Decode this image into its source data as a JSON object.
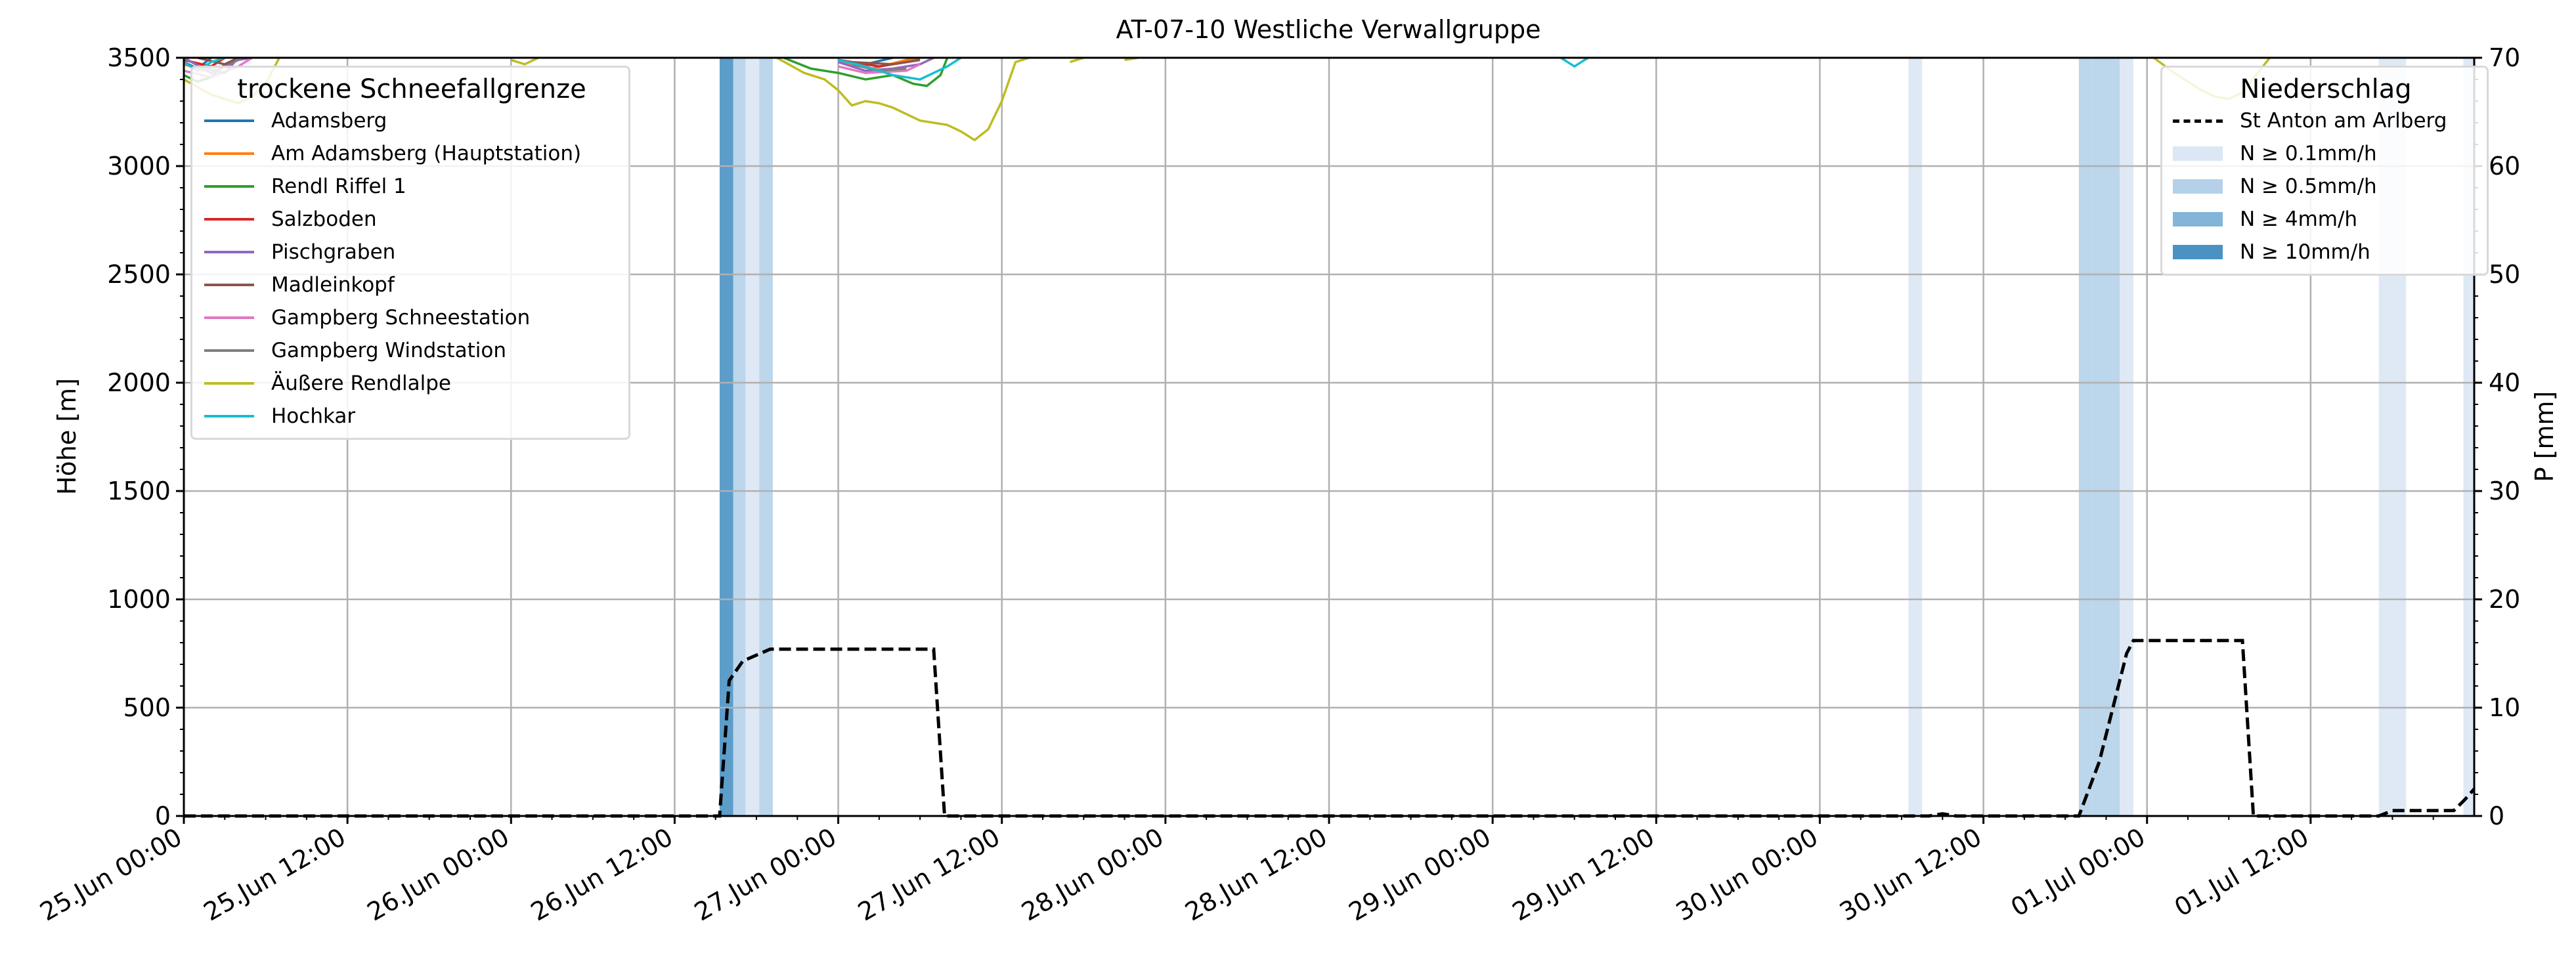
{
  "chart_data": {
    "type": "line",
    "title": "AT-07-10 Westliche Verwallgruppe",
    "ylabel": "Höhe [m]",
    "y2label": "P [mm]",
    "ylim": [
      0,
      3500
    ],
    "y2lim": [
      0,
      70
    ],
    "yticks": [
      0,
      500,
      1000,
      1500,
      2000,
      2500,
      3000,
      3500
    ],
    "y2ticks": [
      0,
      10,
      20,
      30,
      40,
      50,
      60,
      70
    ],
    "x_range_hours": [
      0,
      168
    ],
    "xticks": [
      "25.Jun 00:00",
      "25.Jun 12:00",
      "26.Jun 00:00",
      "26.Jun 12:00",
      "27.Jun 00:00",
      "27.Jun 12:00",
      "28.Jun 00:00",
      "28.Jun 12:00",
      "29.Jun 00:00",
      "29.Jun 12:00",
      "30.Jun 00:00",
      "30.Jun 12:00",
      "01.Jul 00:00",
      "01.Jul 12:00"
    ],
    "grid": true,
    "legend_left": {
      "title": "trockene Schneefallgrenze",
      "placement": "top-left",
      "entries": [
        {
          "name": "Adamsberg",
          "color": "#1f77b4"
        },
        {
          "name": "Am Adamsberg (Hauptstation)",
          "color": "#ff7f0e"
        },
        {
          "name": "Rendl Riffel 1",
          "color": "#2ca02c"
        },
        {
          "name": "Salzboden",
          "color": "#d62728"
        },
        {
          "name": "Pischgraben",
          "color": "#9467bd"
        },
        {
          "name": "Madleinkopf",
          "color": "#8c564b"
        },
        {
          "name": "Gampberg Schneestation",
          "color": "#e377c2"
        },
        {
          "name": "Gampberg Windstation",
          "color": "#7f7f7f"
        },
        {
          "name": "Äußere Rendlalpe",
          "color": "#bcbd22"
        },
        {
          "name": "Hochkar",
          "color": "#17becf"
        }
      ]
    },
    "legend_right": {
      "title": "Niederschlag",
      "placement": "top-right",
      "line_label": "St Anton am Arlberg",
      "intensity_labels": [
        "N ≥ 0.1mm/h",
        "N ≥ 0.5mm/h",
        "N ≥ 4mm/h",
        "N ≥ 10mm/h"
      ],
      "intensity_colors": [
        "#dbe7f4",
        "#b5d1e9",
        "#82b5d8",
        "#4a92c4"
      ]
    },
    "precip_cumulative": {
      "name": "St Anton am Arlberg",
      "points": [
        [
          0,
          0
        ],
        [
          39.3,
          0
        ],
        [
          40.0,
          12.5
        ],
        [
          41.0,
          14.3
        ],
        [
          43.0,
          15.4
        ],
        [
          55.0,
          15.4
        ],
        [
          55.8,
          0
        ],
        [
          121.0,
          0
        ],
        [
          128.0,
          0
        ],
        [
          129.0,
          0.2
        ],
        [
          130.0,
          0
        ],
        [
          139.0,
          0
        ],
        [
          140.5,
          5
        ],
        [
          141.5,
          10
        ],
        [
          142.5,
          15
        ],
        [
          143.0,
          16.2
        ],
        [
          151.0,
          16.2
        ],
        [
          151.8,
          0
        ],
        [
          161.0,
          0
        ],
        [
          162.0,
          0.5
        ],
        [
          166.5,
          0.5
        ],
        [
          167.3,
          1.5
        ],
        [
          168.0,
          2.5
        ]
      ]
    },
    "precip_bands": [
      {
        "start": 39.3,
        "end": 40.3,
        "level": 3
      },
      {
        "start": 40.3,
        "end": 41.2,
        "level": 1
      },
      {
        "start": 41.2,
        "end": 42.2,
        "level": 0
      },
      {
        "start": 42.2,
        "end": 43.2,
        "level": 1
      },
      {
        "start": 126.5,
        "end": 127.5,
        "level": 0
      },
      {
        "start": 139.0,
        "end": 140.0,
        "level": 1
      },
      {
        "start": 140.0,
        "end": 142.0,
        "level": 1
      },
      {
        "start": 142.0,
        "end": 143.0,
        "level": 0
      },
      {
        "start": 161.0,
        "end": 163.0,
        "level": 0
      },
      {
        "start": 167.2,
        "end": 168.0,
        "level": 0
      }
    ],
    "snowline_series": [
      {
        "name": "Adamsberg",
        "color": "#1f77b4",
        "segments": [
          [
            [
              0,
              3480
            ],
            [
              1,
              3450
            ],
            [
              2,
              3500
            ]
          ],
          [
            [
              48,
              3490
            ],
            [
              50,
              3470
            ],
            [
              52,
              3500
            ]
          ]
        ]
      },
      {
        "name": "Am Adamsberg (Hauptstation)",
        "color": "#ff7f0e",
        "segments": [
          [
            [
              0,
              3470
            ],
            [
              1.5,
              3440
            ],
            [
              3,
              3500
            ]
          ],
          [
            [
              48,
              3480
            ],
            [
              50.5,
              3450
            ],
            [
              53,
              3490
            ],
            [
              54,
              3500
            ]
          ]
        ]
      },
      {
        "name": "Rendl Riffel 1",
        "color": "#2ca02c",
        "segments": [
          [
            [
              0,
              3420
            ],
            [
              1,
              3390
            ],
            [
              2,
              3410
            ],
            [
              3,
              3470
            ],
            [
              4,
              3500
            ]
          ],
          [
            [
              44,
              3500
            ],
            [
              46,
              3450
            ],
            [
              48,
              3430
            ],
            [
              50,
              3400
            ],
            [
              52,
              3420
            ],
            [
              53.5,
              3380
            ],
            [
              54.5,
              3370
            ],
            [
              55.5,
              3420
            ],
            [
              56,
              3500
            ]
          ]
        ]
      },
      {
        "name": "Salzboden",
        "color": "#d62728",
        "segments": [
          [
            [
              0,
              3490
            ],
            [
              2,
              3460
            ],
            [
              3,
              3500
            ]
          ],
          [
            [
              48,
              3490
            ],
            [
              51,
              3460
            ],
            [
              54,
              3490
            ]
          ]
        ]
      },
      {
        "name": "Pischgraben",
        "color": "#9467bd",
        "segments": [
          [
            [
              0,
              3500
            ],
            [
              2,
              3430
            ],
            [
              4,
              3490
            ],
            [
              5,
              3500
            ]
          ],
          [
            [
              48,
              3480
            ],
            [
              50,
              3440
            ],
            [
              52,
              3450
            ],
            [
              54,
              3470
            ],
            [
              55,
              3500
            ]
          ]
        ]
      },
      {
        "name": "Madleinkopf",
        "color": "#8c564b",
        "segments": [
          [
            [
              1,
              3500
            ],
            [
              3,
              3470
            ],
            [
              4,
              3500
            ]
          ],
          [
            [
              49,
              3480
            ],
            [
              52,
              3470
            ],
            [
              54,
              3490
            ]
          ]
        ]
      },
      {
        "name": "Gampberg Schneestation",
        "color": "#e377c2",
        "segments": [
          [
            [
              0,
              3440
            ],
            [
              2,
              3410
            ],
            [
              4,
              3460
            ],
            [
              5,
              3500
            ]
          ],
          [
            [
              48,
              3460
            ],
            [
              50,
              3430
            ],
            [
              53,
              3440
            ],
            [
              54,
              3470
            ]
          ]
        ]
      },
      {
        "name": "Gampberg Windstation",
        "color": "#7f7f7f",
        "segments": [
          [
            [
              1,
              3460
            ],
            [
              3,
              3430
            ],
            [
              4,
              3500
            ]
          ],
          [
            [
              49,
              3470
            ],
            [
              51,
              3440
            ],
            [
              53,
              3450
            ]
          ]
        ]
      },
      {
        "name": "Äußere Rendlalpe",
        "color": "#bcbd22",
        "segments": [
          [
            [
              0,
              3400
            ],
            [
              2,
              3330
            ],
            [
              4,
              3290
            ],
            [
              5,
              3320
            ],
            [
              6,
              3380
            ],
            [
              7,
              3500
            ]
          ],
          [
            [
              24,
              3490
            ],
            [
              25,
              3470
            ],
            [
              26,
              3500
            ]
          ],
          [
            [
              43.5,
              3500
            ],
            [
              45.5,
              3430
            ],
            [
              47,
              3400
            ],
            [
              48,
              3350
            ],
            [
              49,
              3280
            ],
            [
              50,
              3300
            ],
            [
              51,
              3290
            ],
            [
              52,
              3270
            ],
            [
              53,
              3240
            ],
            [
              54,
              3210
            ],
            [
              55,
              3200
            ],
            [
              56,
              3190
            ],
            [
              57,
              3160
            ],
            [
              58,
              3120
            ],
            [
              59,
              3170
            ],
            [
              60,
              3300
            ],
            [
              61,
              3480
            ],
            [
              62,
              3500
            ]
          ],
          [
            [
              65,
              3480
            ],
            [
              66,
              3500
            ]
          ],
          [
            [
              69,
              3490
            ],
            [
              70,
              3500
            ]
          ],
          [
            [
              120,
              3500
            ]
          ],
          [
            [
              144.5,
              3500
            ],
            [
              146,
              3430
            ],
            [
              147,
              3390
            ],
            [
              148,
              3350
            ],
            [
              149,
              3320
            ],
            [
              150,
              3310
            ],
            [
              151,
              3340
            ],
            [
              152,
              3420
            ],
            [
              153,
              3500
            ]
          ]
        ]
      },
      {
        "name": "Hochkar",
        "color": "#17becf",
        "segments": [
          [
            [
              0,
              3480
            ],
            [
              1,
              3440
            ],
            [
              2,
              3480
            ],
            [
              3,
              3500
            ]
          ],
          [
            [
              48,
              3490
            ],
            [
              50,
              3460
            ],
            [
              52,
              3420
            ],
            [
              54,
              3400
            ],
            [
              55,
              3430
            ],
            [
              56,
              3460
            ],
            [
              57,
              3500
            ]
          ],
          [
            [
              101,
              3500
            ],
            [
              102,
              3460
            ],
            [
              103,
              3500
            ]
          ]
        ]
      }
    ]
  }
}
